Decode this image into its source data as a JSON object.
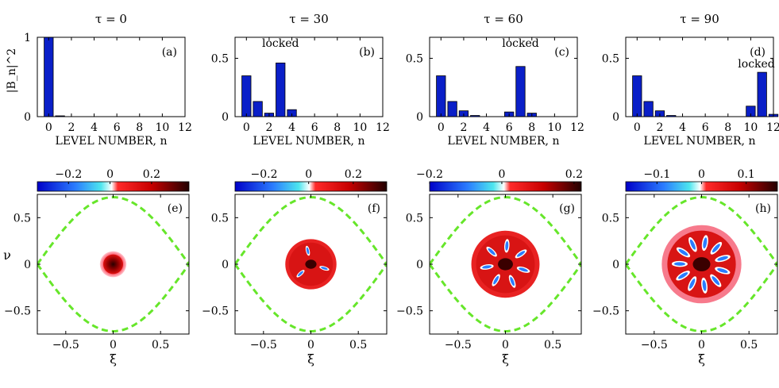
{
  "figure": {
    "bar_color": "#0a1fc8",
    "separatrix_color": "#66e62a",
    "axis_color": "#000000"
  },
  "chart_data": [
    {
      "type": "bar",
      "panel": "(a)",
      "title": "τ = 0",
      "xlabel": "LEVEL NUMBER, n",
      "ylabel": "|B_n|^2",
      "categories": [
        0,
        1,
        2,
        3,
        4,
        5,
        6,
        7,
        8,
        9,
        10,
        11,
        12
      ],
      "values": [
        1.0,
        0.01,
        0,
        0,
        0,
        0,
        0,
        0,
        0,
        0,
        0,
        0,
        0
      ],
      "xlim": [
        -1,
        12
      ],
      "ylim": [
        0,
        1
      ],
      "xticks": [
        0,
        2,
        4,
        6,
        8,
        10,
        12
      ],
      "yticks": [
        {
          "v": 0,
          "label": "0"
        },
        {
          "v": 1,
          "label": "1"
        }
      ],
      "annotation": null
    },
    {
      "type": "bar",
      "panel": "(b)",
      "title": "τ = 30",
      "xlabel": "LEVEL NUMBER, n",
      "categories": [
        0,
        1,
        2,
        3,
        4,
        5,
        6,
        7,
        8,
        9,
        10,
        11,
        12
      ],
      "values": [
        0.35,
        0.13,
        0.03,
        0.46,
        0.06,
        0,
        0,
        0,
        0,
        0,
        0,
        0,
        0
      ],
      "xlim": [
        -1,
        12
      ],
      "ylim": [
        0,
        0.68
      ],
      "xticks": [
        0,
        2,
        4,
        6,
        8,
        10,
        12
      ],
      "yticks": [
        {
          "v": 0,
          "label": "0"
        },
        {
          "v": 0.5,
          "label": "0.5"
        }
      ],
      "annotation": {
        "text": "locked",
        "x": 3,
        "y": 0.6
      }
    },
    {
      "type": "bar",
      "panel": "(c)",
      "title": "τ = 60",
      "xlabel": "LEVEL NUMBER, n",
      "categories": [
        0,
        1,
        2,
        3,
        4,
        5,
        6,
        7,
        8,
        9,
        10,
        11,
        12
      ],
      "values": [
        0.35,
        0.13,
        0.05,
        0.01,
        0,
        0,
        0.04,
        0.43,
        0.03,
        0,
        0,
        0,
        0
      ],
      "xlim": [
        -1,
        12
      ],
      "ylim": [
        0,
        0.68
      ],
      "xticks": [
        0,
        2,
        4,
        6,
        8,
        10,
        12
      ],
      "yticks": [
        {
          "v": 0,
          "label": "0"
        },
        {
          "v": 0.5,
          "label": "0.5"
        }
      ],
      "annotation": {
        "text": "locked",
        "x": 7,
        "y": 0.6
      }
    },
    {
      "type": "bar",
      "panel": "(d)",
      "title": "τ = 90",
      "xlabel": "LEVEL NUMBER, n",
      "categories": [
        0,
        1,
        2,
        3,
        4,
        5,
        6,
        7,
        8,
        9,
        10,
        11,
        12
      ],
      "values": [
        0.35,
        0.13,
        0.05,
        0.01,
        0,
        0,
        0,
        0,
        0,
        0,
        0.09,
        0.38,
        0.02
      ],
      "xlim": [
        -1,
        12
      ],
      "ylim": [
        0,
        0.68
      ],
      "xticks": [
        0,
        2,
        4,
        6,
        8,
        10,
        12
      ],
      "yticks": [
        {
          "v": 0,
          "label": "0"
        },
        {
          "v": 0.5,
          "label": "0.5"
        }
      ],
      "annotation": {
        "text": "locked",
        "x": 10.5,
        "y": 0.42
      }
    },
    {
      "type": "heatmap",
      "panel": "(e)",
      "xlabel": "ξ",
      "ylabel": "ν",
      "xlim": [
        -0.8,
        0.8
      ],
      "ylim": [
        -0.75,
        0.75
      ],
      "xticks": [
        {
          "v": -0.5,
          "label": "−0.5"
        },
        {
          "v": 0,
          "label": "0"
        },
        {
          "v": 0.5,
          "label": "0.5"
        }
      ],
      "yticks": [
        {
          "v": 0.5,
          "label": "0.5"
        },
        {
          "v": 0,
          "label": "0"
        },
        {
          "v": -0.5,
          "label": "−0.5"
        }
      ],
      "colorbar": {
        "range": [
          -0.35,
          0.38
        ],
        "ticks": [
          {
            "v": -0.2,
            "label": "−0.2"
          },
          {
            "v": 0,
            "label": "0"
          },
          {
            "v": 0.2,
            "label": "0.2"
          }
        ]
      },
      "separatrix_amplitude": 0.72,
      "blob": {
        "radius": 0.14,
        "petals": 0,
        "ring": 0
      }
    },
    {
      "type": "heatmap",
      "panel": "(f)",
      "xlabel": "ξ",
      "xlim": [
        -0.8,
        0.8
      ],
      "ylim": [
        -0.75,
        0.75
      ],
      "xticks": [
        {
          "v": -0.5,
          "label": "−0.5"
        },
        {
          "v": 0,
          "label": "0"
        },
        {
          "v": 0.5,
          "label": "0.5"
        }
      ],
      "yticks": [
        {
          "v": 0.5,
          "label": "0.5"
        },
        {
          "v": 0,
          "label": "0"
        },
        {
          "v": -0.5,
          "label": "−0.5"
        }
      ],
      "colorbar": {
        "range": [
          -0.33,
          0.35
        ],
        "ticks": [
          {
            "v": -0.2,
            "label": "−0.2"
          },
          {
            "v": 0,
            "label": "0"
          },
          {
            "v": 0.2,
            "label": "0.2"
          }
        ]
      },
      "separatrix_amplitude": 0.72,
      "blob": {
        "radius": 0.27,
        "petals": 3,
        "ring": 0.15
      }
    },
    {
      "type": "heatmap",
      "panel": "(g)",
      "xlabel": "ξ",
      "xlim": [
        -0.8,
        0.8
      ],
      "ylim": [
        -0.75,
        0.75
      ],
      "xticks": [
        {
          "v": -0.5,
          "label": "−0.5"
        },
        {
          "v": 0,
          "label": "0"
        },
        {
          "v": 0.5,
          "label": "0.5"
        }
      ],
      "yticks": [
        {
          "v": 0.5,
          "label": "0.5"
        },
        {
          "v": 0,
          "label": "0"
        },
        {
          "v": -0.5,
          "label": "−0.5"
        }
      ],
      "colorbar": {
        "range": [
          -0.2,
          0.22
        ],
        "ticks": [
          {
            "v": -0.2,
            "label": "−0.2"
          },
          {
            "v": 0,
            "label": "0"
          },
          {
            "v": 0.2,
            "label": "0.2"
          }
        ]
      },
      "separatrix_amplitude": 0.72,
      "blob": {
        "radius": 0.36,
        "petals": 7,
        "ring": 0.2
      }
    },
    {
      "type": "heatmap",
      "panel": "(h)",
      "xlabel": "ξ",
      "xlim": [
        -0.8,
        0.8
      ],
      "ylim": [
        -0.75,
        0.75
      ],
      "xticks": [
        {
          "v": -0.5,
          "label": "−0.5"
        },
        {
          "v": 0,
          "label": "0"
        },
        {
          "v": 0.5,
          "label": "0.5"
        }
      ],
      "yticks": [
        {
          "v": 0.5,
          "label": "0.5"
        },
        {
          "v": 0,
          "label": "0"
        },
        {
          "v": -0.5,
          "label": "−0.5"
        }
      ],
      "colorbar": {
        "range": [
          -0.17,
          0.17
        ],
        "ticks": [
          {
            "v": -0.1,
            "label": "−0.1"
          },
          {
            "v": 0,
            "label": "0"
          },
          {
            "v": 0.1,
            "label": "0.1"
          }
        ]
      },
      "separatrix_amplitude": 0.72,
      "blob": {
        "radius": 0.42,
        "petals": 11,
        "ring": 0.25
      }
    }
  ]
}
